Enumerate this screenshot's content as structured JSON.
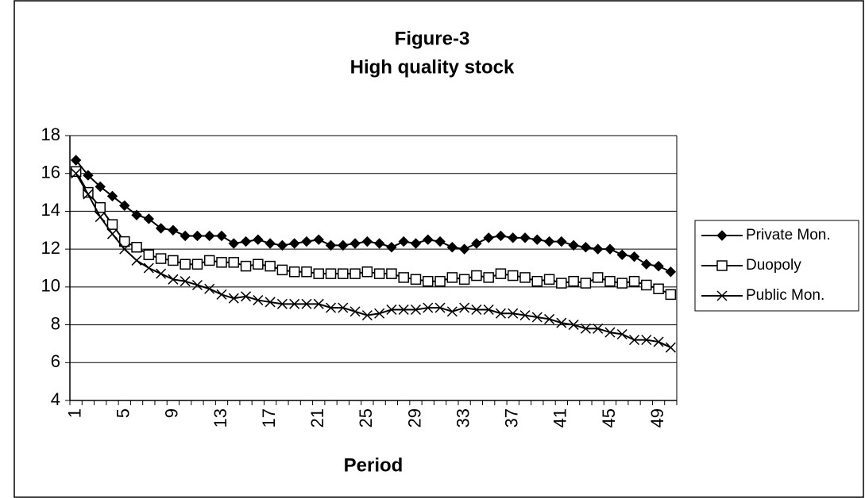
{
  "chart_data": {
    "type": "line",
    "title": "Figure-3",
    "subtitle": "High quality stock",
    "x_label": "Period",
    "categories": [
      "1",
      null,
      null,
      null,
      "5",
      null,
      null,
      null,
      "9",
      null,
      null,
      null,
      "13",
      null,
      null,
      null,
      "17",
      null,
      null,
      null,
      "21",
      null,
      null,
      null,
      "25",
      null,
      null,
      null,
      "29",
      null,
      null,
      null,
      "33",
      null,
      null,
      null,
      "37",
      null,
      null,
      null,
      "41",
      null,
      null,
      null,
      "45",
      null,
      null,
      null,
      "49",
      null
    ],
    "series": [
      {
        "name": "Private Mon.",
        "color": "#000000",
        "marker": "diamond",
        "values": [
          16.7,
          15.9,
          15.3,
          14.8,
          14.3,
          13.8,
          13.6,
          13.1,
          13.0,
          12.7,
          12.7,
          12.7,
          12.7,
          12.3,
          12.4,
          12.5,
          12.3,
          12.2,
          12.3,
          12.4,
          12.5,
          12.2,
          12.2,
          12.3,
          12.4,
          12.3,
          12.1,
          12.4,
          12.3,
          12.5,
          12.4,
          12.1,
          12.0,
          12.3,
          12.6,
          12.7,
          12.6,
          12.6,
          12.5,
          12.4,
          12.4,
          12.2,
          12.1,
          12.0,
          12.0,
          11.7,
          11.6,
          11.2,
          11.1,
          10.8
        ]
      },
      {
        "name": "Duopoly",
        "color": "#000000",
        "marker": "square",
        "values": [
          16.1,
          15.0,
          14.2,
          13.3,
          12.4,
          12.1,
          11.7,
          11.5,
          11.4,
          11.2,
          11.2,
          11.4,
          11.3,
          11.3,
          11.1,
          11.2,
          11.1,
          10.9,
          10.8,
          10.8,
          10.7,
          10.7,
          10.7,
          10.7,
          10.8,
          10.7,
          10.7,
          10.5,
          10.4,
          10.3,
          10.3,
          10.5,
          10.4,
          10.6,
          10.5,
          10.7,
          10.6,
          10.5,
          10.3,
          10.4,
          10.2,
          10.3,
          10.2,
          10.5,
          10.3,
          10.2,
          10.3,
          10.1,
          9.9,
          9.6
        ]
      },
      {
        "name": "Public Mon.",
        "color": "#000000",
        "marker": "cross",
        "values": [
          16.0,
          14.9,
          13.7,
          12.8,
          12.0,
          11.4,
          11.0,
          10.7,
          10.4,
          10.3,
          10.1,
          9.9,
          9.6,
          9.4,
          9.5,
          9.3,
          9.2,
          9.1,
          9.1,
          9.1,
          9.1,
          8.9,
          8.9,
          8.7,
          8.5,
          8.6,
          8.8,
          8.8,
          8.8,
          8.9,
          8.9,
          8.7,
          8.9,
          8.8,
          8.8,
          8.6,
          8.6,
          8.5,
          8.4,
          8.3,
          8.1,
          8.0,
          7.8,
          7.8,
          7.6,
          7.5,
          7.2,
          7.2,
          7.1,
          6.8
        ]
      }
    ],
    "ylim": [
      4,
      18
    ],
    "yticks": [
      4,
      6,
      8,
      10,
      12,
      14,
      16,
      18
    ],
    "grid": true,
    "legend": "right"
  }
}
